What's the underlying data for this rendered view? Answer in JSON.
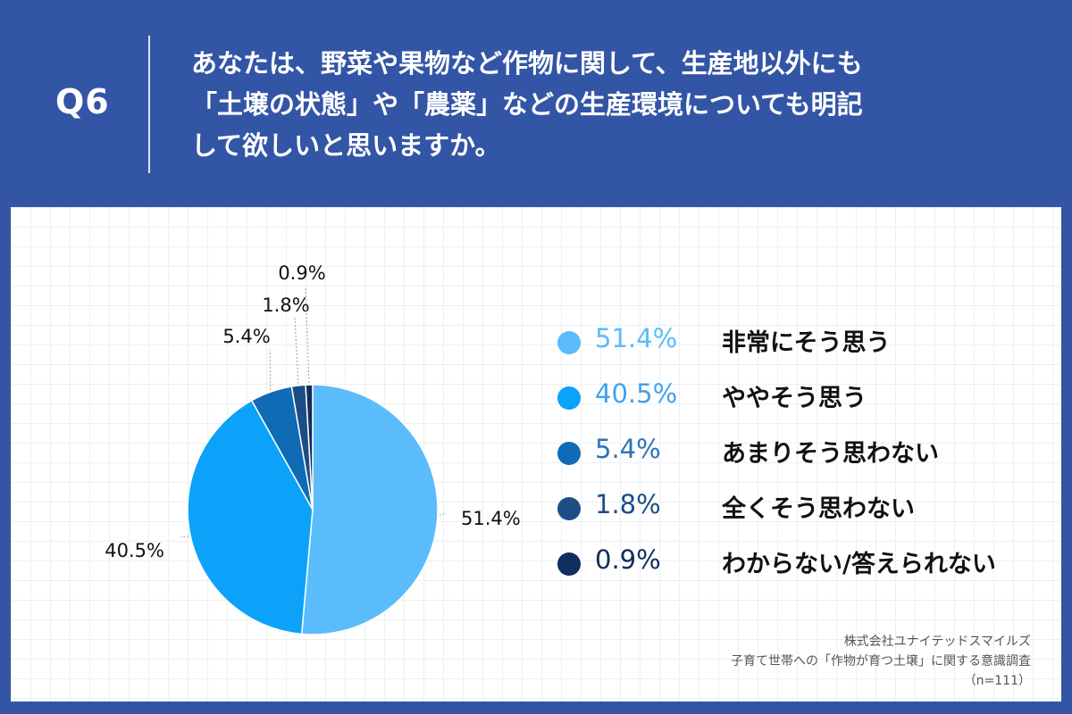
{
  "header": {
    "q_label": "Q6",
    "question_lines": [
      "あなたは、野菜や果物など作物に関して、生産地以外にも",
      "「土壌の状態」や「農薬」などの生産環境についても明記",
      "して欲しいと思いますか。"
    ]
  },
  "chart_data": {
    "type": "pie",
    "categories": [
      "非常にそう思う",
      "ややそう思う",
      "あまりそう思わない",
      "全くそう思わない",
      "わからない/答えられない"
    ],
    "values": [
      51.4,
      40.5,
      5.4,
      1.8,
      0.9
    ],
    "data_labels": [
      "51.4%",
      "40.5%",
      "5.4%",
      "1.8%",
      "0.9%"
    ],
    "colors": [
      "#5bbcfc",
      "#0ca2fa",
      "#0f6bb5",
      "#1d4d85",
      "#102e5e"
    ],
    "legend_value_colors": [
      "#5bbcfc",
      "#3ea2ee",
      "#2c74b8",
      "#1d4d85",
      "#102e5e"
    ],
    "legend_placement": "right"
  },
  "legend": [
    {
      "value": "51.4%",
      "label": "非常にそう思う"
    },
    {
      "value": "40.5%",
      "label": "ややそう思う"
    },
    {
      "value": "5.4%",
      "label": "あまりそう思わない"
    },
    {
      "value": "1.8%",
      "label": "全くそう思わない"
    },
    {
      "value": "0.9%",
      "label": "わからない/答えられない"
    }
  ],
  "footer": {
    "company": "株式会社ユナイテッドスマイルズ",
    "survey": "子育て世帯への「作物が育つ土壌」に関する意識調査",
    "sample": "（n=111）"
  }
}
